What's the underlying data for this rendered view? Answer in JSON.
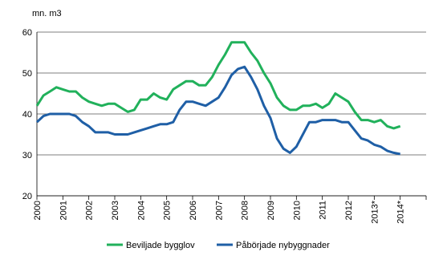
{
  "chart_data": {
    "type": "line",
    "y_unit": "mn. m3",
    "x": [
      2000,
      2000.25,
      2000.5,
      2000.75,
      2001,
      2001.25,
      2001.5,
      2001.75,
      2002,
      2002.25,
      2002.5,
      2002.75,
      2003,
      2003.25,
      2003.5,
      2003.75,
      2004,
      2004.25,
      2004.5,
      2004.75,
      2005,
      2005.25,
      2005.5,
      2005.75,
      2006,
      2006.25,
      2006.5,
      2006.75,
      2007,
      2007.25,
      2007.5,
      2007.75,
      2008,
      2008.25,
      2008.5,
      2008.75,
      2009,
      2009.25,
      2009.5,
      2009.75,
      2010,
      2010.25,
      2010.5,
      2010.75,
      2011,
      2011.25,
      2011.5,
      2011.75,
      2012,
      2012.25,
      2012.5,
      2012.75,
      2013,
      2013.25,
      2013.5,
      2013.75,
      2014
    ],
    "series": [
      {
        "name": "Beviljade bygglov",
        "color": "#21b15b",
        "values": [
          42,
          44.5,
          45.5,
          46.5,
          46,
          45.5,
          45.5,
          44,
          43,
          42.5,
          42,
          42.5,
          42.5,
          41.5,
          40.5,
          41,
          43.5,
          43.5,
          45,
          44,
          43.5,
          46,
          47,
          48,
          48,
          47,
          47,
          49,
          52,
          54.5,
          57.5,
          57.5,
          57.5,
          55,
          53,
          50,
          47.5,
          44,
          42,
          41,
          41,
          42,
          42,
          42.5,
          41.5,
          42.5,
          45,
          44,
          43,
          40.5,
          38.5,
          38.5,
          38,
          38.5,
          37,
          36.5,
          37
        ]
      },
      {
        "name": "Påbörjade nybyggnader",
        "color": "#1f5fa6",
        "values": [
          38,
          39.5,
          40,
          40,
          40,
          40,
          39.5,
          38,
          37,
          35.5,
          35.5,
          35.5,
          35,
          35,
          35,
          35.5,
          36,
          36.5,
          37,
          37.5,
          37.5,
          38,
          41,
          43,
          43,
          42.5,
          42,
          43,
          44,
          46.5,
          49.5,
          51,
          51.5,
          49,
          46,
          42,
          39,
          34,
          31.5,
          30.5,
          32,
          35,
          38,
          38,
          38.5,
          38.5,
          38.5,
          38,
          38,
          36,
          34,
          33.5,
          32.5,
          32,
          31,
          30.5,
          30.2
        ]
      }
    ],
    "xlim": [
      2000,
      2015
    ],
    "xticks": [
      2000,
      2001,
      2002,
      2003,
      2004,
      2005,
      2006,
      2007,
      2008,
      2009,
      2010,
      2011,
      2012,
      {
        "value": 2013,
        "label": "2013*"
      },
      {
        "value": 2014,
        "label": "2014*"
      }
    ],
    "ylim": [
      20,
      60
    ],
    "yticks": [
      20,
      30,
      40,
      50,
      60
    ],
    "grid": true
  }
}
